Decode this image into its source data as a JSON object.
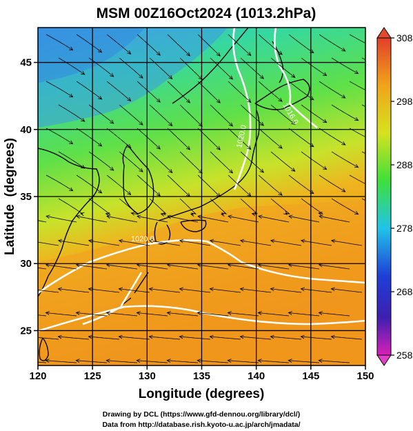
{
  "title": "MSM 00Z16Oct2024 (1013.2hPa)",
  "axes": {
    "xlabel": "Longitude (degrees)",
    "ylabel": "Latitude  (degrees)",
    "x_ticks": [
      "120",
      "125",
      "130",
      "135",
      "140",
      "145",
      "150"
    ],
    "y_ticks": [
      "25",
      "30",
      "35",
      "40",
      "45"
    ],
    "xlim": [
      120,
      150
    ],
    "ylim": [
      22.4,
      47.6
    ]
  },
  "colorbar": {
    "ticks": [
      "308",
      "298",
      "288",
      "278",
      "268",
      "258"
    ],
    "range": [
      258,
      308
    ]
  },
  "contour_labels": [
    "1020.0",
    "1016.0",
    "1020.0"
  ],
  "credits": {
    "line1": "Drawing by DCL (https://www.gfd-dennou.org/library/dcl/)",
    "line2": "Data from http://database.rish.kyoto-u.ac.jp/arch/jmadata/"
  },
  "colors": {
    "cold": "#1f3fd8",
    "cool": "#20c4e8",
    "mild": "#3ee03a",
    "warm": "#e8e21e",
    "hot": "#ee9418",
    "max": "#e24a2a",
    "min": "#d820b8",
    "contour": "#ffffff",
    "coast": "#000000"
  }
}
